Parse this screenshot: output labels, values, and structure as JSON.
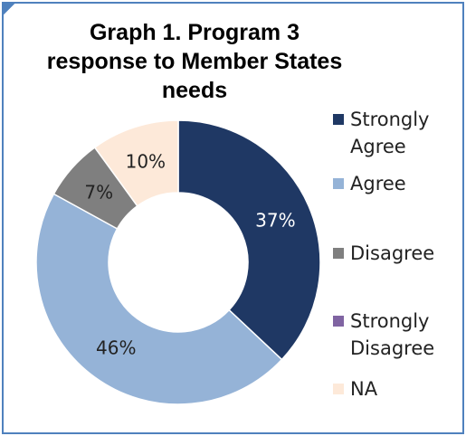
{
  "title_lines": [
    "Graph 1.  Program 3",
    "response to Member States",
    "needs"
  ],
  "chart_data": {
    "type": "pie",
    "variant": "doughnut",
    "categories": [
      "Strongly Agree",
      "Agree",
      "Disagree",
      "Strongly Disagree",
      "NA"
    ],
    "values": [
      37,
      46,
      7,
      0,
      10
    ],
    "value_labels": [
      "37%",
      "46%",
      "7%",
      "",
      "10%"
    ],
    "legend_labels": [
      "Strongly\nAgree",
      "Agree",
      "Disagree",
      "Strongly\nDisagree",
      "NA"
    ],
    "colors": [
      "#1f3864",
      "#95b3d7",
      "#7f7f7f",
      "#8064a2",
      "#fde9d9"
    ],
    "label_colors": [
      "#ffffff",
      "#222222",
      "#222222",
      "#222222",
      "#222222"
    ],
    "legend_position": "right"
  }
}
